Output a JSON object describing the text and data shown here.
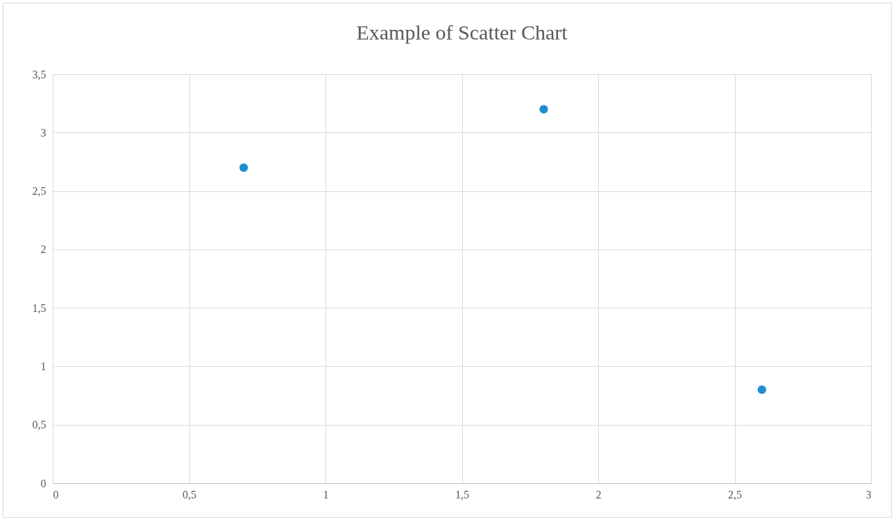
{
  "chart_data": {
    "type": "scatter",
    "title": "Example of Scatter Chart",
    "x": [
      0.7,
      1.8,
      2.6
    ],
    "series": [
      {
        "color": "#1f8ccf",
        "values": [
          2.7,
          3.2,
          0.8
        ]
      }
    ],
    "xlim": [
      0,
      3
    ],
    "xticks": [
      0,
      {
        "value": 0.5,
        "label": "0,5"
      },
      1,
      {
        "value": 1.5,
        "label": "1,5"
      },
      2,
      {
        "value": 2.5,
        "label": "2,5"
      },
      3
    ],
    "ylim": [
      0,
      3.5
    ],
    "yticks": [
      0,
      {
        "value": 0.5,
        "label": "0,5"
      },
      1,
      {
        "value": 1.5,
        "label": "1,5"
      },
      2,
      {
        "value": 2.5,
        "label": "2,5"
      },
      3,
      {
        "value": 3.5,
        "label": "3,5"
      }
    ],
    "grid": true,
    "marker": "circle"
  }
}
